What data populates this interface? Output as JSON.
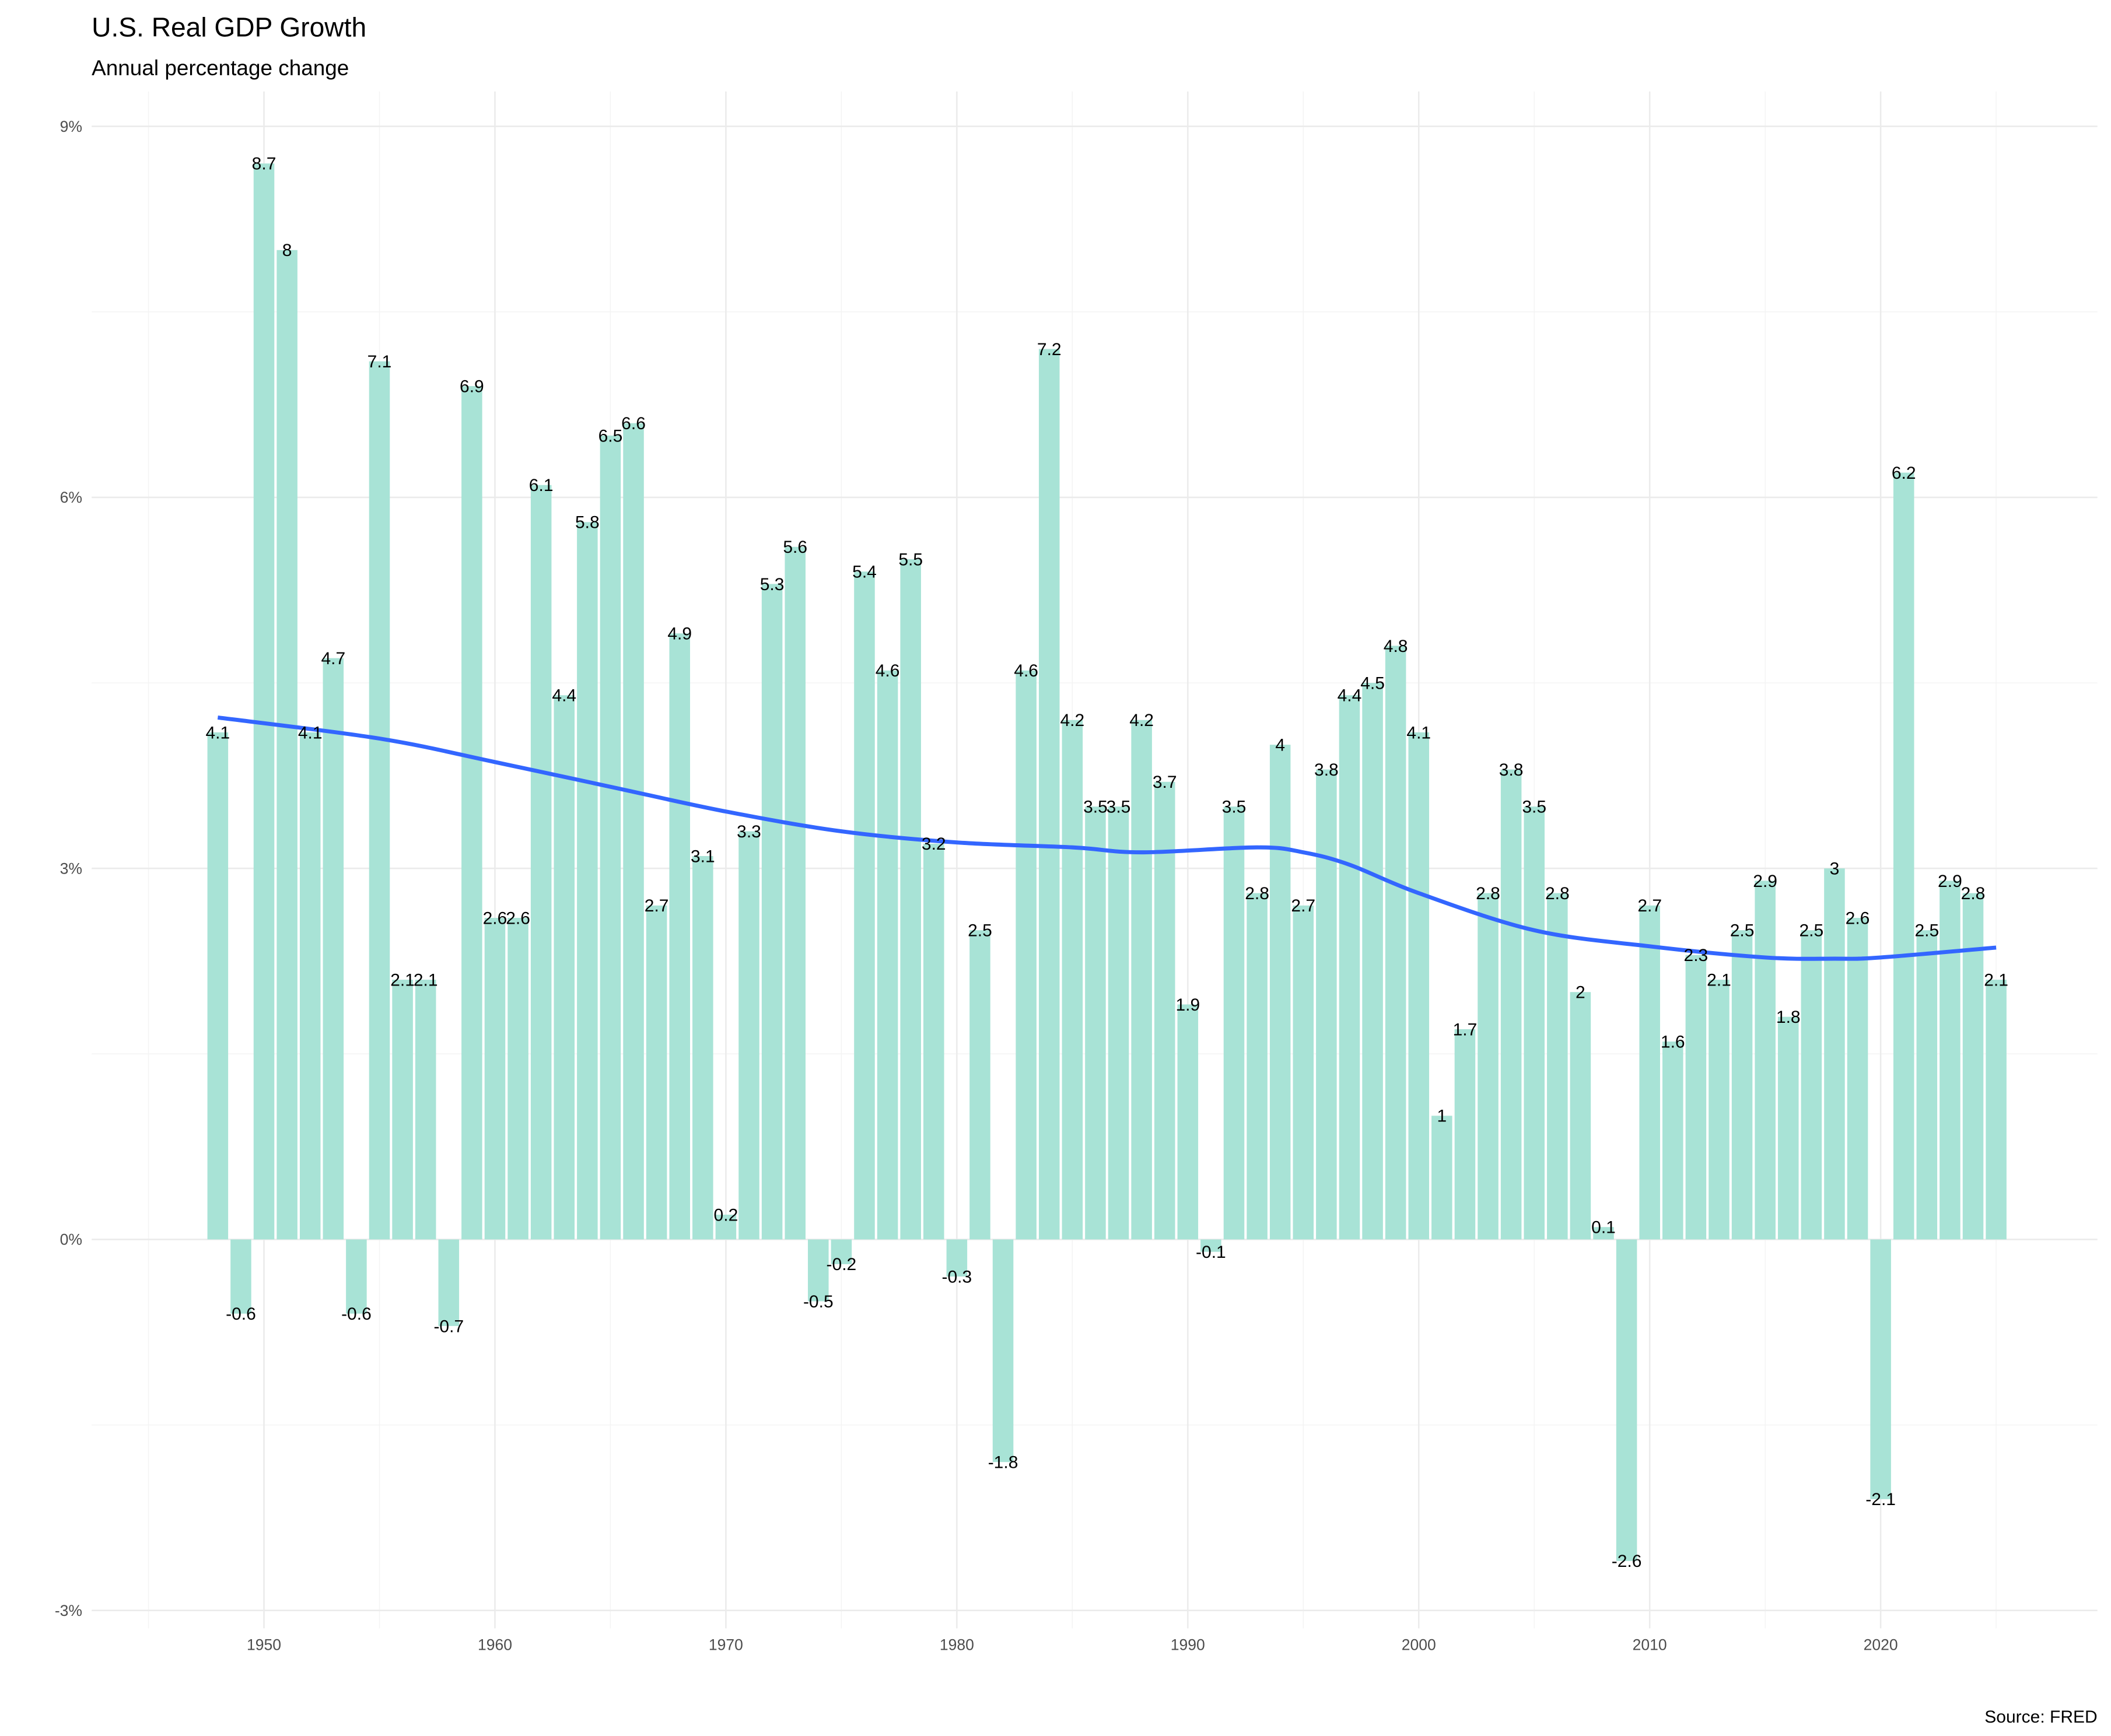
{
  "chart_data": {
    "type": "bar",
    "title": "U.S. Real GDP Growth",
    "subtitle": "Annual percentage change",
    "caption": "Source: FRED",
    "xlabel": "",
    "ylabel": "",
    "ylim": [
      -3,
      9
    ],
    "xlim": [
      1945,
      2028
    ],
    "x_ticks": [
      1950,
      1960,
      1970,
      1980,
      1990,
      2000,
      2010,
      2020
    ],
    "y_ticks": [
      -3,
      0,
      3,
      6,
      9
    ],
    "y_tick_labels": [
      "-3%",
      "0%",
      "3%",
      "6%",
      "9%"
    ],
    "grid": true,
    "bar_color": "#a8e3d6",
    "trend_color": "#3366ff",
    "years": [
      1948,
      1949,
      1950,
      1951,
      1952,
      1953,
      1954,
      1955,
      1956,
      1957,
      1958,
      1959,
      1960,
      1961,
      1962,
      1963,
      1964,
      1965,
      1966,
      1967,
      1968,
      1969,
      1970,
      1971,
      1972,
      1973,
      1974,
      1975,
      1976,
      1977,
      1978,
      1979,
      1980,
      1981,
      1982,
      1983,
      1984,
      1985,
      1986,
      1987,
      1988,
      1989,
      1990,
      1991,
      1992,
      1993,
      1994,
      1995,
      1996,
      1997,
      1998,
      1999,
      2000,
      2001,
      2002,
      2003,
      2004,
      2005,
      2006,
      2007,
      2008,
      2009,
      2010,
      2011,
      2012,
      2013,
      2014,
      2015,
      2016,
      2017,
      2018,
      2019,
      2020,
      2021,
      2022,
      2023,
      2024,
      2025
    ],
    "values": [
      4.1,
      -0.6,
      8.7,
      8,
      4.1,
      4.7,
      -0.6,
      7.1,
      2.1,
      2.1,
      -0.7,
      6.9,
      2.6,
      2.6,
      6.1,
      4.4,
      5.8,
      6.5,
      6.6,
      2.7,
      4.9,
      3.1,
      0.2,
      3.3,
      5.3,
      5.6,
      -0.5,
      -0.2,
      5.4,
      4.6,
      5.5,
      3.2,
      -0.3,
      2.5,
      -1.8,
      4.6,
      7.2,
      4.2,
      3.5,
      3.5,
      4.2,
      3.7,
      1.9,
      -0.1,
      3.5,
      2.8,
      4,
      2.7,
      3.8,
      4.4,
      4.5,
      4.8,
      4.1,
      1,
      1.7,
      2.8,
      3.8,
      3.5,
      2.8,
      2,
      0.1,
      -2.6,
      2.7,
      1.6,
      2.3,
      2.1,
      2.5,
      2.9,
      1.8,
      2.5,
      3,
      2.6,
      -2.1,
      6.2,
      2.5,
      2.9,
      2.8,
      2.1
    ],
    "trend": {
      "type": "smooth",
      "x": [
        1948,
        1955,
        1960,
        1965,
        1970,
        1975,
        1980,
        1985,
        1988,
        1993,
        1995,
        1997,
        2000,
        2005,
        2010,
        2015,
        2018,
        2020,
        2025
      ],
      "y": [
        4.22,
        4.05,
        3.86,
        3.66,
        3.46,
        3.3,
        3.21,
        3.17,
        3.13,
        3.17,
        3.13,
        3.03,
        2.8,
        2.5,
        2.37,
        2.28,
        2.27,
        2.28,
        2.36
      ]
    }
  }
}
